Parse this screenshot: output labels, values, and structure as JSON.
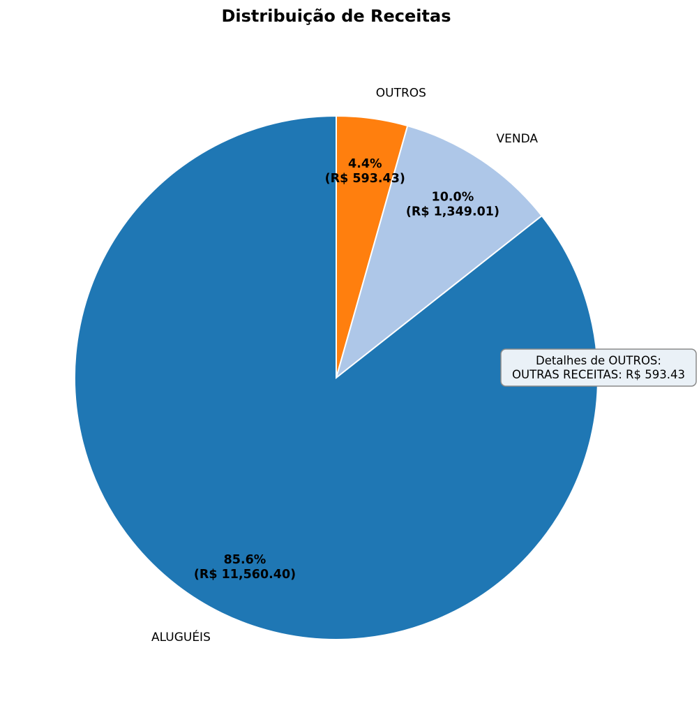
{
  "chart_data": {
    "type": "pie",
    "title": "Distribuição de Receitas",
    "start_angle_deg": 90,
    "direction": "clockwise-from-top",
    "slices": [
      {
        "label": "OUTROS",
        "value": 593.43,
        "percent": 4.4,
        "pct_text": "4.4%",
        "value_text": "(R$ 593.43)",
        "color": "#ff7f0e"
      },
      {
        "label": "VENDA",
        "value": 1349.01,
        "percent": 10.0,
        "pct_text": "10.0%",
        "value_text": "(R$ 1,349.01)",
        "color": "#aec7e8"
      },
      {
        "label": "ALUGUÉIS",
        "value": 11560.4,
        "percent": 85.6,
        "pct_text": "85.6%",
        "value_text": "(R$ 11,560.40)",
        "color": "#1f77b4"
      }
    ],
    "annotation": {
      "line1": "Detalhes de OUTROS:",
      "line2": "OUTRAS RECEITAS: R$ 593.43"
    },
    "edge_color": "#ffffff"
  }
}
